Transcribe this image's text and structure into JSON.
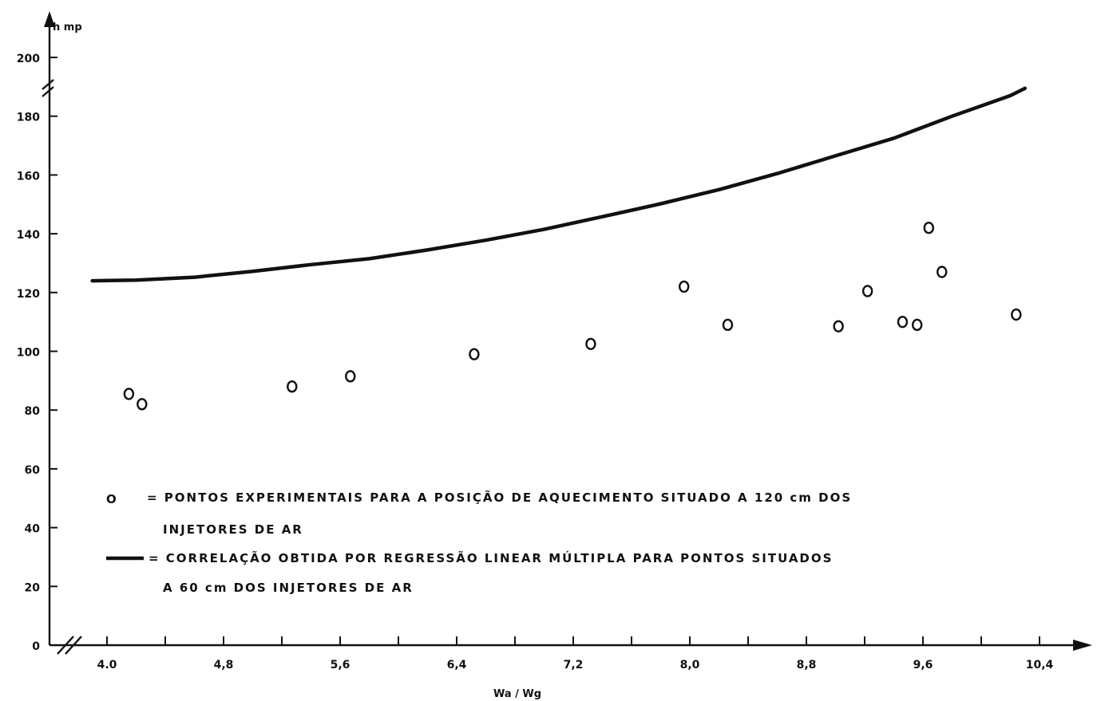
{
  "chart_data": {
    "type": "scatter",
    "ylabel": "h mp",
    "xlabel": "Wa / Wg",
    "x_ticks": [
      {
        "value": 4.0,
        "label": "4.0"
      },
      {
        "value": 4.8,
        "label": "4,8"
      },
      {
        "value": 5.6,
        "label": "5,6"
      },
      {
        "value": 6.4,
        "label": "6,4"
      },
      {
        "value": 7.2,
        "label": "7,2"
      },
      {
        "value": 8.0,
        "label": "8,0"
      },
      {
        "value": 8.8,
        "label": "8,8"
      },
      {
        "value": 9.6,
        "label": "9,6"
      },
      {
        "value": 10.4,
        "label": "10,4"
      }
    ],
    "y_ticks": [
      {
        "value": 0,
        "label": "0"
      },
      {
        "value": 20,
        "label": "20"
      },
      {
        "value": 40,
        "label": "40"
      },
      {
        "value": 60,
        "label": "60"
      },
      {
        "value": 80,
        "label": "80"
      },
      {
        "value": 100,
        "label": "100"
      },
      {
        "value": 120,
        "label": "120"
      },
      {
        "value": 140,
        "label": "140"
      },
      {
        "value": 160,
        "label": "160"
      },
      {
        "value": 180,
        "label": "180"
      },
      {
        "value": 200,
        "label": "200"
      }
    ],
    "axis_breaks": "both",
    "grid": false,
    "legend_position": "bottom-left",
    "series": [
      {
        "kind": "points",
        "marker": "circle-open",
        "legend_symbol": "O",
        "legend_lines": [
          "= PONTOS EXPERIMENTAIS PARA A POSIÇÃO DE AQUECIMENTO SITUADO A 120 cm DOS",
          "INJETORES DE AR"
        ],
        "points": [
          [
            4.15,
            85.5
          ],
          [
            4.24,
            82
          ],
          [
            5.27,
            88
          ],
          [
            5.67,
            91.5
          ],
          [
            6.52,
            99
          ],
          [
            7.32,
            102.5
          ],
          [
            7.96,
            122
          ],
          [
            8.26,
            109
          ],
          [
            9.02,
            108.5
          ],
          [
            9.22,
            120.5
          ],
          [
            9.46,
            110
          ],
          [
            9.56,
            109
          ],
          [
            9.64,
            142
          ],
          [
            9.73,
            127
          ],
          [
            10.24,
            112.5
          ]
        ]
      },
      {
        "kind": "line",
        "legend_lines": [
          "= CORRELAÇÃO OBTIDA POR REGRESSÃO LINEAR MÚLTIPLA PARA PONTOS SITUADOS",
          "A 60 cm DOS INJETORES DE AR"
        ],
        "points": [
          [
            3.9,
            124
          ],
          [
            4.2,
            124.2
          ],
          [
            4.6,
            125.2
          ],
          [
            5.0,
            127.2
          ],
          [
            5.4,
            129.5
          ],
          [
            5.8,
            131.5
          ],
          [
            6.2,
            134.5
          ],
          [
            6.6,
            137.8
          ],
          [
            7.0,
            141.5
          ],
          [
            7.4,
            145.8
          ],
          [
            7.8,
            150.2
          ],
          [
            8.2,
            155
          ],
          [
            8.6,
            160.5
          ],
          [
            9.0,
            166.5
          ],
          [
            9.4,
            172.5
          ],
          [
            9.8,
            180
          ],
          [
            10.2,
            187
          ],
          [
            10.3,
            189.5
          ]
        ]
      }
    ]
  }
}
